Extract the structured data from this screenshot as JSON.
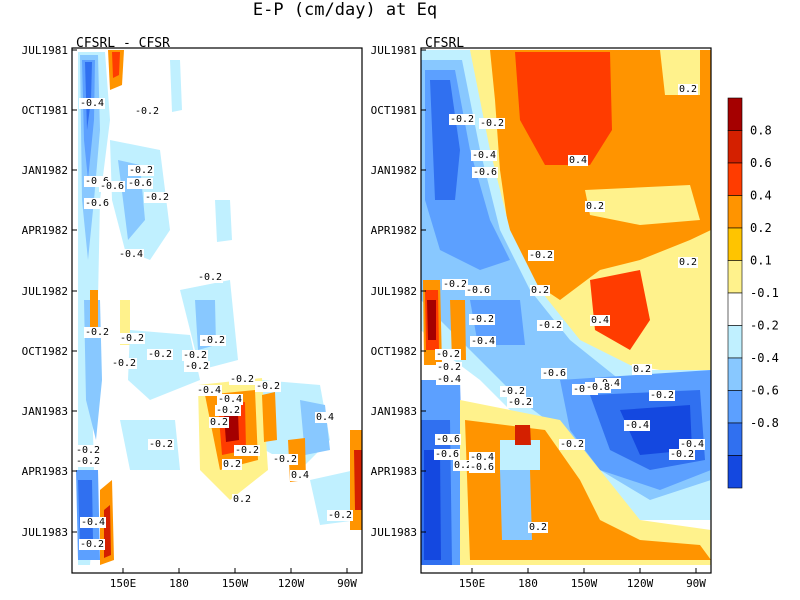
{
  "chart_data": {
    "type": "heatmap",
    "title": "E-P (cm/day) at Eq",
    "y_ticks": [
      "JUL1981",
      "OCT1981",
      "JAN1982",
      "APR1982",
      "JUL1982",
      "OCT1982",
      "JAN1983",
      "APR1983",
      "JUL1983"
    ],
    "x_ticks": [
      "150E",
      "180",
      "150W",
      "120W",
      "90W"
    ],
    "colorbar": {
      "levels": [
        "0.8",
        "0.6",
        "0.4",
        "0.2",
        "0.1",
        "-0.1",
        "-0.2",
        "-0.4",
        "-0.6",
        "-0.8"
      ],
      "colors": [
        "#a50000",
        "#d42000",
        "#ff3c00",
        "#ff9400",
        "#ffc400",
        "#fff28c",
        "#ffffff",
        "#c0f0ff",
        "#88c8ff",
        "#5ca0ff",
        "#3070f0",
        "#1448e0"
      ]
    },
    "panels": [
      {
        "title": "CFSRL - CFSR",
        "contour_labels": [
          "-0.4",
          "-0.2",
          "-0.2",
          "-0.6",
          "-0.6",
          "-0.6",
          "-0.2",
          "-0.6",
          "-0.4",
          "-0.2",
          "-0.2",
          "-0.2",
          "-0.2",
          "-0.2",
          "-0.2",
          "-0.2",
          "-0.2",
          "-0.2",
          "-0.4",
          "-0.2",
          "-0.4",
          "-0.2",
          "0.2",
          "-0.2",
          "0.2",
          "0.4",
          "-0.2",
          "0.4",
          "-0.2",
          "0.2",
          "-0.2",
          "-0.2",
          "-0.4",
          "-0.2",
          "-0.2"
        ]
      },
      {
        "title": "CFSRL",
        "contour_labels": [
          "0.2",
          "-0.2",
          "-0.2",
          "-0.4",
          "-0.6",
          "0.4",
          "0.2",
          "-0.2",
          "0.2",
          "0.2",
          "-0.2",
          "-0.6",
          "-0.2",
          "-0.4",
          "-0.2",
          "-0.2",
          "0.4",
          "-0.2",
          "-0.4",
          "-0.6",
          "0.2",
          "-0.4",
          "-0.4",
          "-0.2",
          "-0.8",
          "-0.2",
          "-0.2",
          "-0.2",
          "-0.4",
          "-0.6",
          "-0.6",
          "0.2",
          "-0.4",
          "-0.6",
          "-0.4",
          "-0.2",
          "0.2"
        ]
      }
    ]
  }
}
